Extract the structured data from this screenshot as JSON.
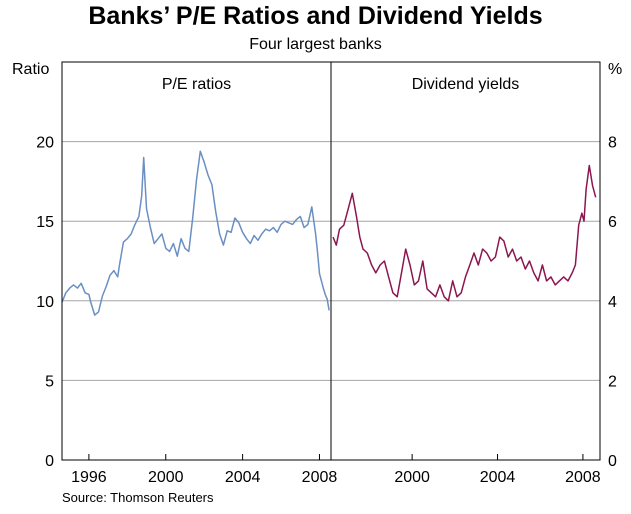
{
  "chart_data": {
    "type": "line",
    "title": "Banks’ P/E Ratios and Dividend Yields",
    "subtitle": "Four largest banks",
    "source": "Source: Thomson Reuters",
    "grid": true,
    "colors": {
      "pe": "#6a8fc2",
      "yield": "#8b1650",
      "grid": "#a6a6a6",
      "axis": "#000000"
    },
    "panels": [
      {
        "name": "P/E ratios",
        "title": "P/E ratios",
        "ylabel": "Ratio",
        "axis_side": "left",
        "xlim": [
          1994.6,
          2008.6
        ],
        "ylim": [
          0,
          25
        ],
        "yticks": [
          0,
          5,
          10,
          15,
          20
        ],
        "xticks": [
          1996,
          2000,
          2004,
          2008
        ],
        "xtick_labels": [
          "1996",
          "2000",
          "2004",
          "2008"
        ],
        "series": [
          {
            "name": "P/E ratio",
            "color": "#6a8fc2",
            "x": [
              1994.6,
              1994.8,
              1995.0,
              1995.2,
              1995.4,
              1995.6,
              1995.8,
              1996.0,
              1996.1,
              1996.3,
              1996.5,
              1996.7,
              1996.9,
              1997.1,
              1997.3,
              1997.5,
              1997.6,
              1997.8,
              1998.0,
              1998.2,
              1998.4,
              1998.6,
              1998.75,
              1998.85,
              1999.0,
              1999.2,
              1999.4,
              1999.6,
              1999.8,
              2000.0,
              2000.2,
              2000.4,
              2000.6,
              2000.8,
              2001.0,
              2001.2,
              2001.4,
              2001.6,
              2001.8,
              2002.0,
              2002.2,
              2002.4,
              2002.6,
              2002.8,
              2003.0,
              2003.2,
              2003.4,
              2003.6,
              2003.8,
              2004.0,
              2004.2,
              2004.4,
              2004.6,
              2004.8,
              2005.0,
              2005.2,
              2005.4,
              2005.6,
              2005.8,
              2006.0,
              2006.2,
              2006.4,
              2006.6,
              2006.8,
              2007.0,
              2007.2,
              2007.4,
              2007.6,
              2007.8,
              2007.9,
              2008.0,
              2008.2,
              2008.3,
              2008.4,
              2008.5
            ],
            "values": [
              9.9,
              10.5,
              10.8,
              11.0,
              10.8,
              11.1,
              10.5,
              10.4,
              9.9,
              9.1,
              9.3,
              10.3,
              10.9,
              11.6,
              11.9,
              11.5,
              12.3,
              13.7,
              13.9,
              14.2,
              14.8,
              15.3,
              16.6,
              19.0,
              15.8,
              14.6,
              13.6,
              13.9,
              14.2,
              13.3,
              13.1,
              13.6,
              12.8,
              13.9,
              13.3,
              13.1,
              15.2,
              17.6,
              19.4,
              18.7,
              17.9,
              17.3,
              15.6,
              14.2,
              13.5,
              14.4,
              14.3,
              15.2,
              14.9,
              14.3,
              13.9,
              13.6,
              14.1,
              13.8,
              14.2,
              14.5,
              14.4,
              14.6,
              14.3,
              14.8,
              15.0,
              14.9,
              14.8,
              15.1,
              15.3,
              14.6,
              14.8,
              15.9,
              14.2,
              13.0,
              11.7,
              10.8,
              10.4,
              10.1,
              9.4
            ]
          }
        ]
      },
      {
        "name": "Dividend yields",
        "title": "Dividend yields",
        "ylabel": "%",
        "axis_side": "right",
        "xlim": [
          1996.2,
          2008.8
        ],
        "ylim": [
          0,
          10
        ],
        "yticks": [
          0,
          2,
          4,
          6,
          8
        ],
        "xticks": [
          2000,
          2004,
          2008
        ],
        "xtick_labels": [
          "2000",
          "2004",
          "2008"
        ],
        "series": [
          {
            "name": "Dividend yield",
            "color": "#8b1650",
            "x": [
              1996.3,
              1996.45,
              1996.6,
              1996.8,
              1997.0,
              1997.2,
              1997.4,
              1997.55,
              1997.7,
              1997.9,
              1998.1,
              1998.3,
              1998.5,
              1998.7,
              1998.9,
              1999.1,
              1999.3,
              1999.5,
              1999.7,
              1999.9,
              2000.1,
              2000.3,
              2000.5,
              2000.7,
              2000.9,
              2001.1,
              2001.3,
              2001.5,
              2001.7,
              2001.9,
              2002.1,
              2002.3,
              2002.5,
              2002.7,
              2002.9,
              2003.1,
              2003.3,
              2003.5,
              2003.7,
              2003.9,
              2004.1,
              2004.3,
              2004.5,
              2004.7,
              2004.9,
              2005.1,
              2005.3,
              2005.5,
              2005.7,
              2005.9,
              2006.1,
              2006.3,
              2006.5,
              2006.7,
              2006.9,
              2007.1,
              2007.3,
              2007.5,
              2007.65,
              2007.8,
              2007.95,
              2008.05,
              2008.15,
              2008.3,
              2008.45,
              2008.6
            ],
            "values": [
              5.6,
              5.4,
              5.8,
              5.9,
              6.3,
              6.7,
              6.1,
              5.6,
              5.3,
              5.2,
              4.9,
              4.7,
              4.9,
              5.0,
              4.6,
              4.2,
              4.1,
              4.7,
              5.3,
              4.9,
              4.4,
              4.5,
              5.0,
              4.3,
              4.2,
              4.1,
              4.4,
              4.1,
              4.0,
              4.5,
              4.1,
              4.2,
              4.6,
              4.9,
              5.2,
              4.9,
              5.3,
              5.2,
              5.0,
              5.1,
              5.6,
              5.5,
              5.1,
              5.3,
              5.0,
              5.1,
              4.8,
              5.0,
              4.7,
              4.5,
              4.9,
              4.5,
              4.6,
              4.4,
              4.5,
              4.6,
              4.5,
              4.7,
              4.9,
              5.9,
              6.2,
              6.0,
              6.8,
              7.4,
              6.9,
              6.6
            ]
          }
        ]
      }
    ]
  }
}
